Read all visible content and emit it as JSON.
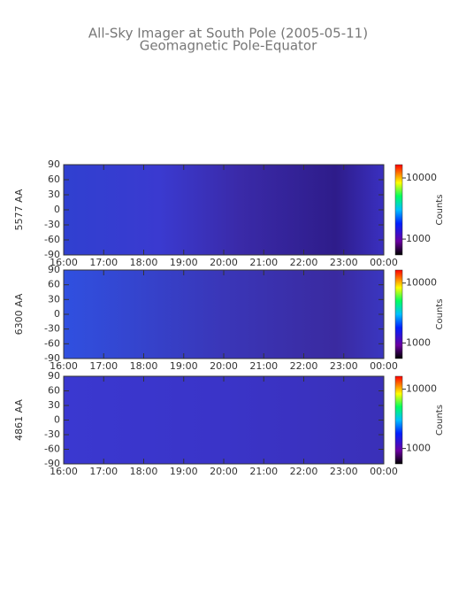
{
  "title": "All-Sky Imager at South Pole (2005-05-11)",
  "subtitle": "Geomagnetic Pole-Equator",
  "chart_data": [
    {
      "type": "heatmap",
      "ylabel": "5577 AA",
      "xlim": [
        16,
        24
      ],
      "xticks": [
        {
          "value": 16,
          "label": "16:00"
        },
        {
          "value": 17,
          "label": "17:00"
        },
        {
          "value": 18,
          "label": "18:00"
        },
        {
          "value": 19,
          "label": "19:00"
        },
        {
          "value": 20,
          "label": "20:00"
        },
        {
          "value": 21,
          "label": "21:00"
        },
        {
          "value": 22,
          "label": "22:00"
        },
        {
          "value": 23,
          "label": "23:00"
        },
        {
          "value": 24,
          "label": "00:00"
        }
      ],
      "ylim": [
        -90,
        90
      ],
      "yticks": [
        -90,
        -60,
        -30,
        0,
        30,
        60,
        90
      ],
      "colorbar": {
        "label": "Counts",
        "log": true,
        "lim": [
          550,
          16500
        ],
        "ticks": [
          1000,
          10000
        ]
      }
    },
    {
      "type": "heatmap",
      "ylabel": "6300 AA",
      "xlim": [
        16,
        24
      ],
      "xticks": [
        {
          "value": 16,
          "label": "16:00"
        },
        {
          "value": 17,
          "label": "17:00"
        },
        {
          "value": 18,
          "label": "18:00"
        },
        {
          "value": 19,
          "label": "19:00"
        },
        {
          "value": 20,
          "label": "20:00"
        },
        {
          "value": 21,
          "label": "21:00"
        },
        {
          "value": 22,
          "label": "22:00"
        },
        {
          "value": 23,
          "label": "23:00"
        },
        {
          "value": 24,
          "label": "00:00"
        }
      ],
      "ylim": [
        -90,
        90
      ],
      "yticks": [
        -90,
        -60,
        -30,
        0,
        30,
        60,
        90
      ],
      "colorbar": {
        "label": "Counts",
        "log": true,
        "lim": [
          550,
          16500
        ],
        "ticks": [
          1000,
          10000
        ]
      }
    },
    {
      "type": "heatmap",
      "ylabel": "4861 AA",
      "xlim": [
        16,
        24
      ],
      "xticks": [
        {
          "value": 16,
          "label": "16:00"
        },
        {
          "value": 17,
          "label": "17:00"
        },
        {
          "value": 18,
          "label": "18:00"
        },
        {
          "value": 19,
          "label": "19:00"
        },
        {
          "value": 20,
          "label": "20:00"
        },
        {
          "value": 21,
          "label": "21:00"
        },
        {
          "value": 22,
          "label": "22:00"
        },
        {
          "value": 23,
          "label": "23:00"
        },
        {
          "value": 24,
          "label": "00:00"
        }
      ],
      "ylim": [
        -90,
        90
      ],
      "yticks": [
        -90,
        -60,
        -30,
        0,
        30,
        60,
        90
      ],
      "colorbar": {
        "label": "Counts",
        "log": true,
        "lim": [
          550,
          16500
        ],
        "ticks": [
          1000,
          10000
        ]
      }
    }
  ]
}
